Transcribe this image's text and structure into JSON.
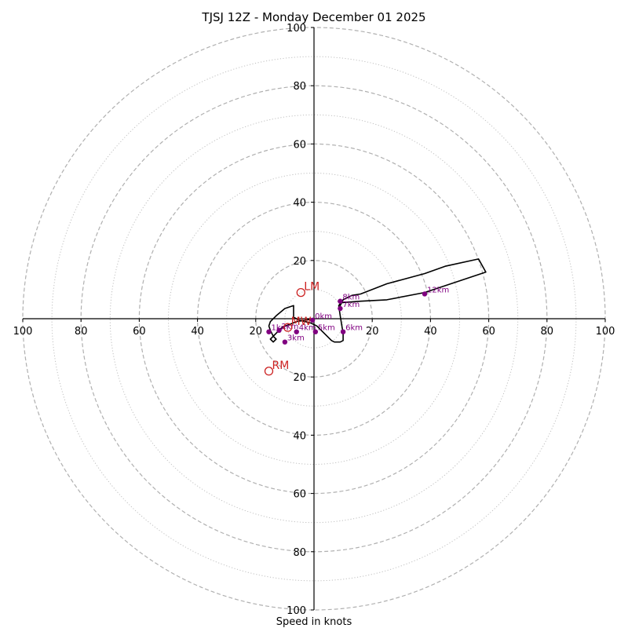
{
  "chart_data": {
    "type": "hodograph",
    "title": "TJSJ 12Z - Monday December 01 2025",
    "xlabel": "Speed in knots",
    "max_speed": 100,
    "ring_step": 20,
    "minor_ring_step": 10,
    "tick_values": [
      20,
      40,
      60,
      80,
      100
    ],
    "grid": true,
    "colors": {
      "trace": "#000000",
      "height_points": "#800080",
      "motion": "#cc2222",
      "grid": "#b0b0b0"
    },
    "hodograph_trace": [
      [
        0,
        0
      ],
      [
        -6,
        -1
      ],
      [
        -11,
        -3
      ],
      [
        -14,
        -6
      ],
      [
        -15,
        -7
      ],
      [
        -14,
        -8
      ],
      [
        -13,
        -7
      ],
      [
        -14,
        -6
      ],
      [
        -15,
        -4
      ],
      [
        -15.5,
        -2.5
      ],
      [
        -15,
        -1
      ],
      [
        -13,
        1
      ],
      [
        -10,
        3.5
      ],
      [
        -7,
        4.5
      ],
      [
        -7,
        2
      ],
      [
        -7,
        0.5
      ],
      [
        -5,
        -0.5
      ],
      [
        -3,
        -1
      ],
      [
        -1,
        -1.5
      ],
      [
        1,
        -2.5
      ],
      [
        3,
        -4.5
      ],
      [
        6,
        -7.5
      ],
      [
        7,
        -8
      ],
      [
        9,
        -8
      ],
      [
        10,
        -7.5
      ],
      [
        10,
        -5
      ],
      [
        9.5,
        -2
      ],
      [
        9,
        1
      ],
      [
        8.5,
        4.5
      ],
      [
        10,
        6.5
      ],
      [
        13,
        8
      ],
      [
        16,
        8.5
      ],
      [
        25,
        12
      ],
      [
        38,
        15.5
      ],
      [
        45,
        18
      ],
      [
        56.5,
        20.5
      ],
      [
        59,
        16
      ],
      [
        38,
        9
      ],
      [
        25,
        6.5
      ],
      [
        16,
        6
      ],
      [
        9.5,
        5.5
      ],
      [
        9,
        4.5
      ],
      [
        10,
        6.5
      ]
    ],
    "height_points": [
      {
        "label": "0km",
        "u": -0.5,
        "v": -0.5
      },
      {
        "label": "1km",
        "u": -15.5,
        "v": -4.5
      },
      {
        "label": "2km",
        "u": -12,
        "v": -4
      },
      {
        "label": "3km",
        "u": -10,
        "v": -8
      },
      {
        "label": "4km",
        "u": -6,
        "v": -4.5
      },
      {
        "label": "5km",
        "u": 0.5,
        "v": -4.5
      },
      {
        "label": "6km",
        "u": 10,
        "v": -4.5
      },
      {
        "label": "7km",
        "u": 9,
        "v": 3.5
      },
      {
        "label": "8km",
        "u": 9,
        "v": 6
      },
      {
        "label": "12km",
        "u": 38,
        "v": 8.5
      }
    ],
    "storm_motion": [
      {
        "label": "LM",
        "u": -4.5,
        "v": 9
      },
      {
        "label": "RM",
        "u": -15.5,
        "v": -18
      },
      {
        "label": "MW",
        "u": -9,
        "v": -3
      }
    ]
  }
}
